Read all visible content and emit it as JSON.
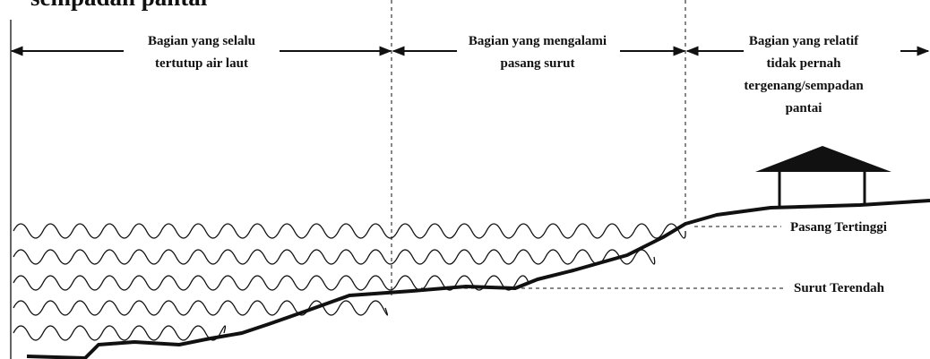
{
  "header": {
    "title": "sempadan pantai"
  },
  "zones": [
    {
      "lines": [
        "Bagian yang selalu",
        "tertutup air laut"
      ]
    },
    {
      "lines": [
        "Bagian yang mengalami",
        "pasang surut"
      ]
    },
    {
      "lines": [
        "Bagian yang relatif",
        "tidak pernah",
        "tergenang/sempadan",
        "pantai"
      ]
    }
  ],
  "levels": [
    {
      "label": "Pasang Tertinggi"
    },
    {
      "label": "Surut Terendah"
    }
  ]
}
